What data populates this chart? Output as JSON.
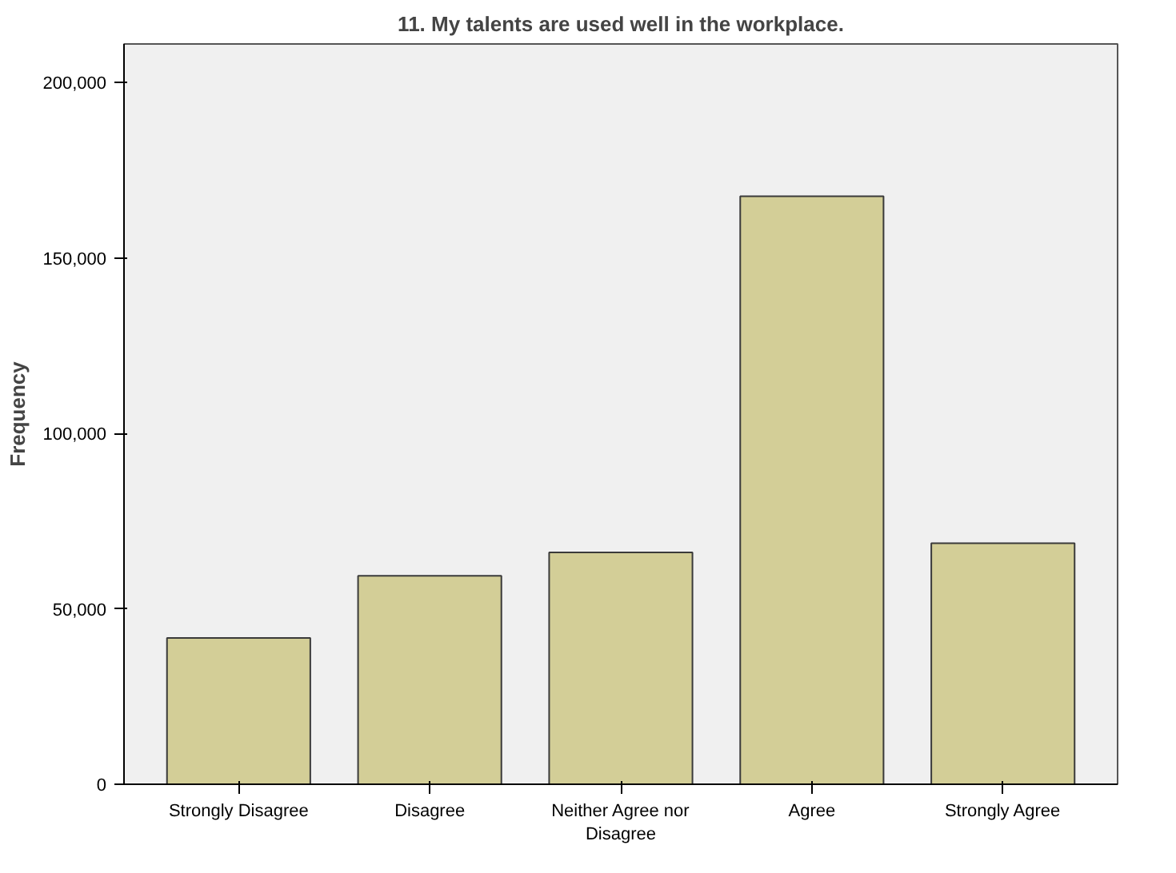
{
  "chart_data": {
    "type": "bar",
    "title": "11. My talents are used well in the workplace.",
    "ylabel": "Frequency",
    "categories": [
      "Strongly Disagree",
      "Disagree",
      "Neither Agree nor Disagree",
      "Agree",
      "Strongly Agree"
    ],
    "values": [
      41700,
      59400,
      66100,
      167600,
      68700
    ],
    "color": "#d3ce97",
    "ylim": [
      0,
      211000
    ],
    "yticks": [
      0,
      {
        "value": 50000,
        "label": "50,000"
      },
      {
        "value": 100000,
        "label": "100,000"
      },
      {
        "value": 150000,
        "label": "150,000"
      },
      {
        "value": 200000,
        "label": "200,000"
      }
    ],
    "grid": false
  }
}
